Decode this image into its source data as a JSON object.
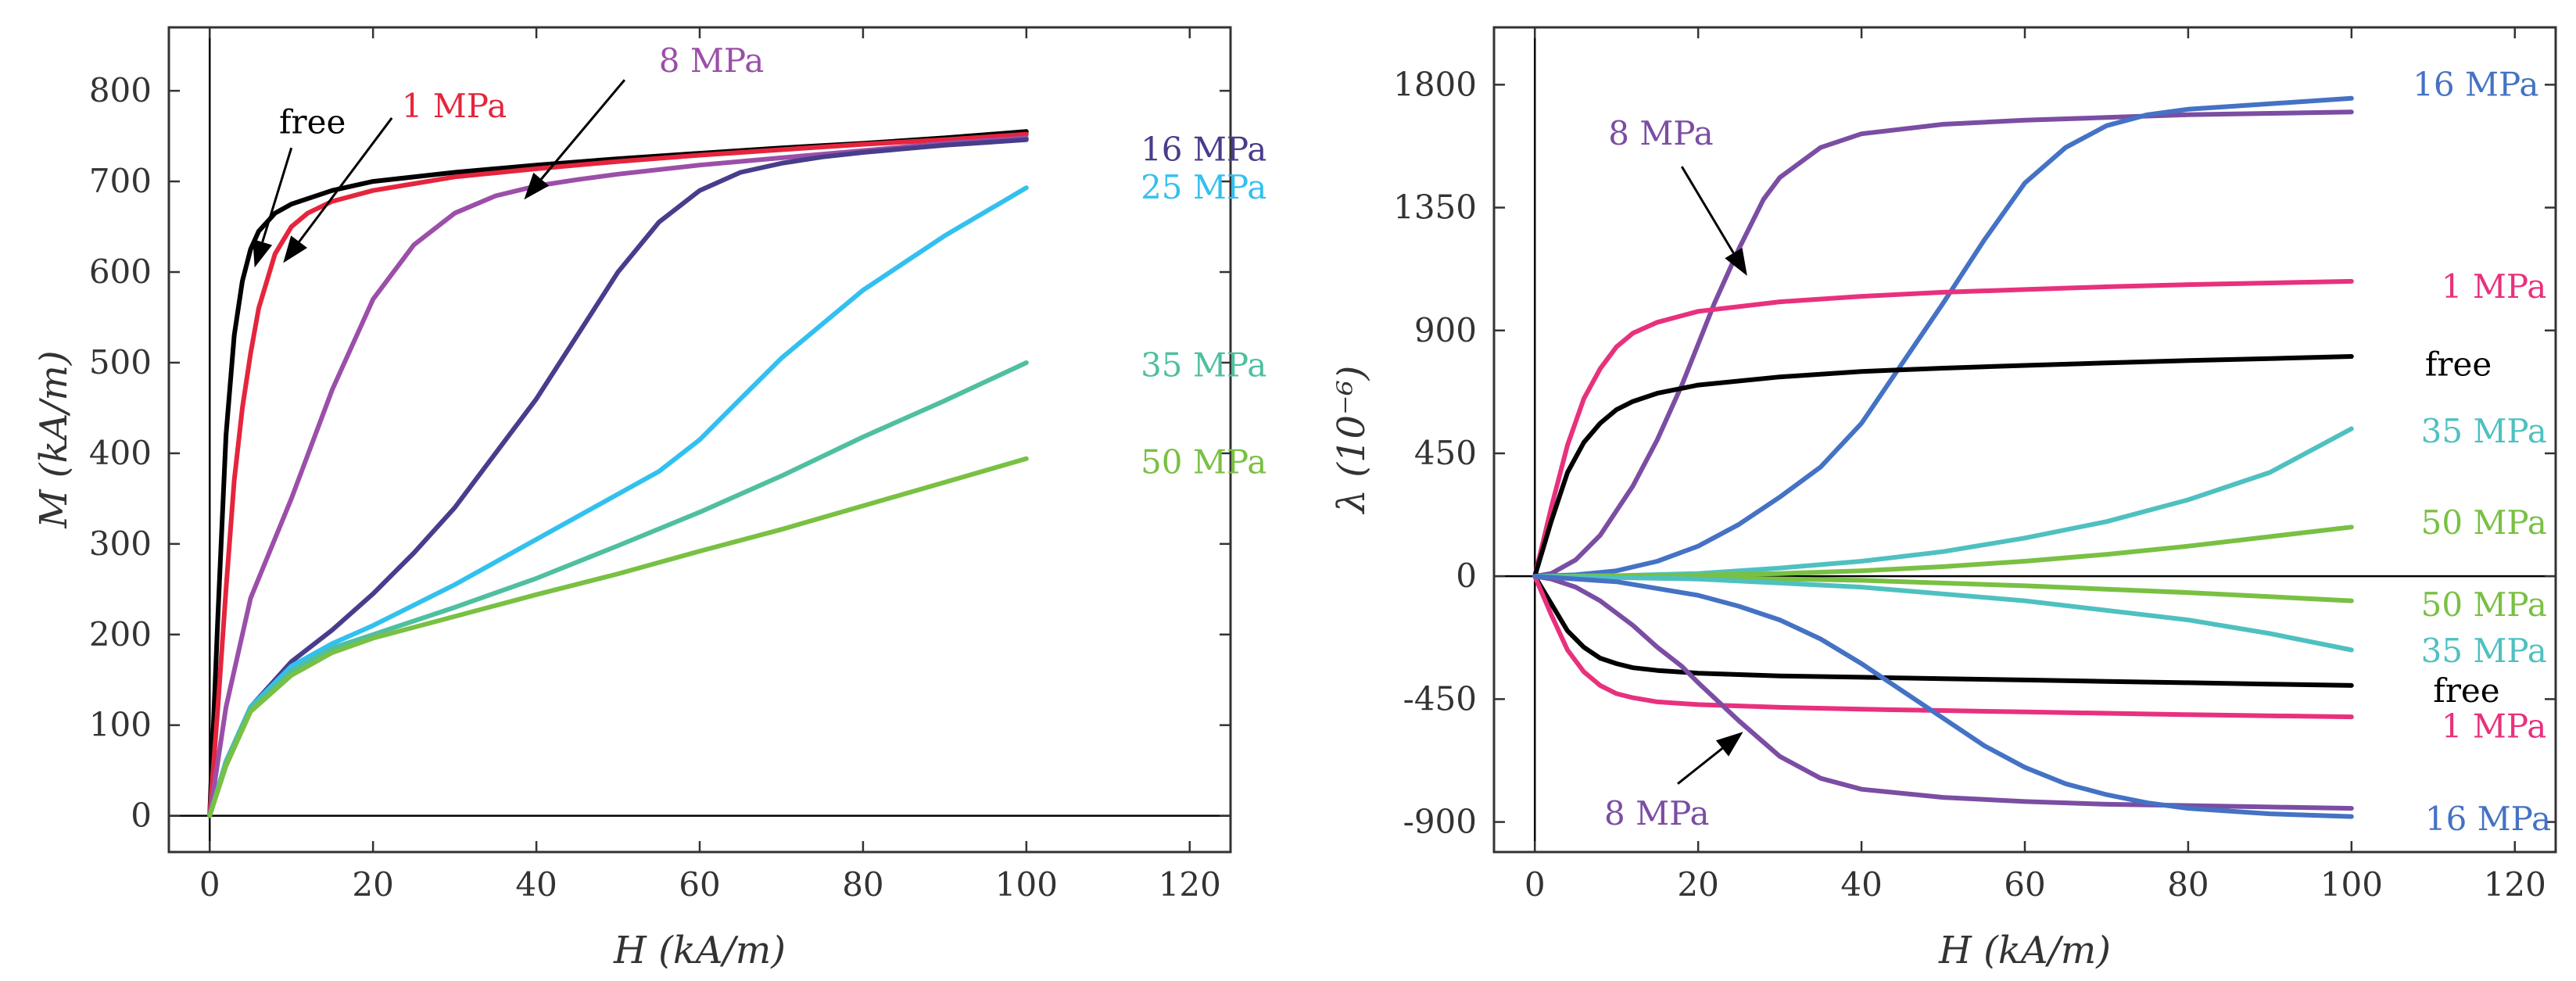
{
  "chart_data": [
    {
      "type": "line",
      "xlabel": "H (kA/m)",
      "ylabel": "M (kA/m)",
      "xlim": [
        -5,
        125
      ],
      "ylim": [
        -40,
        870
      ],
      "x_ticks": [
        0,
        20,
        40,
        60,
        80,
        100,
        120
      ],
      "y_ticks": [
        0,
        100,
        200,
        300,
        400,
        500,
        600,
        700,
        800
      ],
      "series": [
        {
          "name": "free",
          "color": "#000000",
          "x": [
            0,
            1,
            2,
            3,
            4,
            5,
            6,
            8,
            10,
            15,
            20,
            30,
            40,
            50,
            60,
            70,
            80,
            90,
            100
          ],
          "y": [
            0,
            220,
            420,
            530,
            590,
            625,
            645,
            665,
            675,
            690,
            700,
            710,
            718,
            725,
            731,
            737,
            742,
            748,
            755
          ]
        },
        {
          "name": "1 MPa",
          "color": "#e5253d",
          "x": [
            0,
            1,
            2,
            3,
            4,
            5,
            6,
            8,
            10,
            12,
            15,
            20,
            30,
            40,
            50,
            60,
            70,
            80,
            90,
            100
          ],
          "y": [
            0,
            120,
            250,
            370,
            450,
            510,
            560,
            620,
            650,
            665,
            678,
            690,
            705,
            714,
            722,
            729,
            735,
            741,
            746,
            752
          ]
        },
        {
          "name": "8 MPa",
          "color": "#9b4fa8",
          "x": [
            0,
            2,
            5,
            10,
            15,
            20,
            25,
            30,
            35,
            40,
            45,
            50,
            60,
            70,
            80,
            90,
            100
          ],
          "y": [
            0,
            120,
            240,
            350,
            470,
            570,
            630,
            665,
            684,
            695,
            702,
            708,
            718,
            726,
            734,
            742,
            748
          ]
        },
        {
          "name": "16 MPa",
          "color": "#483d8b",
          "x": [
            0,
            2,
            5,
            10,
            15,
            20,
            25,
            30,
            35,
            40,
            45,
            50,
            55,
            60,
            65,
            70,
            75,
            80,
            90,
            100
          ],
          "y": [
            0,
            60,
            120,
            170,
            205,
            245,
            290,
            340,
            400,
            460,
            530,
            600,
            655,
            690,
            710,
            720,
            727,
            732,
            740,
            746
          ]
        },
        {
          "name": "25 MPa",
          "color": "#32c0ef",
          "x": [
            0,
            2,
            5,
            10,
            15,
            20,
            30,
            40,
            50,
            55,
            60,
            65,
            70,
            80,
            90,
            100
          ],
          "y": [
            0,
            60,
            120,
            165,
            190,
            210,
            255,
            305,
            355,
            380,
            415,
            460,
            505,
            580,
            640,
            693
          ]
        },
        {
          "name": "35 MPa",
          "color": "#4fbfa0",
          "x": [
            0,
            2,
            5,
            10,
            15,
            20,
            30,
            40,
            50,
            60,
            70,
            80,
            90,
            100
          ],
          "y": [
            0,
            60,
            118,
            160,
            185,
            200,
            230,
            262,
            298,
            335,
            375,
            418,
            458,
            500
          ]
        },
        {
          "name": "50 MPa",
          "color": "#79c043",
          "x": [
            0,
            2,
            5,
            10,
            15,
            20,
            30,
            40,
            50,
            60,
            70,
            80,
            90,
            100
          ],
          "y": [
            0,
            55,
            115,
            155,
            180,
            196,
            220,
            244,
            267,
            292,
            316,
            342,
            368,
            394
          ]
        }
      ],
      "series_labels": [
        {
          "series": "free",
          "text": "free",
          "x": 8.5,
          "y": 765,
          "color": "#000000"
        },
        {
          "series": "1 MPa",
          "text": "1 MPa",
          "x": 23.5,
          "y": 783,
          "color": "#e5253d"
        },
        {
          "series": "8 MPa",
          "text": "8 MPa",
          "x": 55,
          "y": 833,
          "color": "#9b4fa8"
        },
        {
          "series": "16 MPa",
          "text": "16 MPa",
          "x": 114,
          "y": 735,
          "color": "#483d8b"
        },
        {
          "series": "25 MPa",
          "text": "25 MPa",
          "x": 114,
          "y": 693,
          "color": "#32c0ef"
        },
        {
          "series": "35 MPa",
          "text": "35 MPa",
          "x": 114,
          "y": 497,
          "color": "#4fbfa0"
        },
        {
          "series": "50 MPa",
          "text": "50 MPa",
          "x": 114,
          "y": 390,
          "color": "#79c043"
        }
      ],
      "arrows": [
        {
          "from": [
            10,
            737
          ],
          "to": [
            5.5,
            605
          ]
        },
        {
          "from": [
            22.3,
            770
          ],
          "to": [
            9,
            610
          ]
        },
        {
          "from": [
            50.8,
            812
          ],
          "to": [
            38.5,
            680
          ]
        }
      ]
    },
    {
      "type": "line",
      "xlabel": "H (kA/m)",
      "ylabel": "λ (10⁻⁶)",
      "xlim": [
        -5,
        125
      ],
      "ylim": [
        -1010,
        2010
      ],
      "x_ticks": [
        0,
        20,
        40,
        60,
        80,
        100,
        120
      ],
      "y_ticks": [
        -900,
        -450,
        0,
        450,
        900,
        1350,
        1800
      ],
      "series": [
        {
          "name": "8 MPa",
          "color": "#7b4da3",
          "x": [
            0,
            2,
            5,
            8,
            12,
            15,
            18,
            20,
            22,
            25,
            28,
            30,
            35,
            40,
            50,
            60,
            70,
            80,
            90,
            100
          ],
          "y": [
            0,
            10,
            60,
            150,
            330,
            500,
            700,
            850,
            1000,
            1200,
            1380,
            1460,
            1570,
            1620,
            1655,
            1670,
            1680,
            1690,
            1695,
            1700
          ]
        },
        {
          "name": "16 MPa",
          "color": "#4472c4",
          "x": [
            0,
            5,
            10,
            15,
            20,
            25,
            30,
            35,
            40,
            45,
            50,
            55,
            60,
            65,
            70,
            75,
            80,
            90,
            100
          ],
          "y": [
            0,
            5,
            20,
            55,
            110,
            190,
            290,
            400,
            560,
            780,
            1000,
            1230,
            1440,
            1570,
            1650,
            1690,
            1710,
            1730,
            1750
          ]
        },
        {
          "name": "1 MPa",
          "color": "#e8317d",
          "x": [
            0,
            2,
            4,
            6,
            8,
            10,
            12,
            15,
            20,
            30,
            40,
            50,
            60,
            70,
            80,
            90,
            100
          ],
          "y": [
            0,
            250,
            480,
            650,
            760,
            840,
            890,
            930,
            970,
            1005,
            1025,
            1040,
            1050,
            1060,
            1068,
            1074,
            1080
          ]
        },
        {
          "name": "free",
          "color": "#000000",
          "x": [
            0,
            2,
            4,
            6,
            8,
            10,
            12,
            15,
            20,
            30,
            40,
            50,
            60,
            70,
            80,
            90,
            100
          ],
          "y": [
            0,
            200,
            380,
            490,
            560,
            610,
            640,
            670,
            700,
            730,
            750,
            762,
            772,
            781,
            790,
            797,
            805
          ]
        },
        {
          "name": "35 MPa",
          "color": "#4fc0c0",
          "x": [
            0,
            10,
            20,
            30,
            40,
            50,
            60,
            70,
            80,
            90,
            100
          ],
          "y": [
            0,
            2,
            10,
            30,
            55,
            90,
            140,
            200,
            280,
            380,
            540
          ]
        },
        {
          "name": "50 MPa",
          "color": "#79c043",
          "x": [
            0,
            10,
            20,
            30,
            40,
            50,
            60,
            70,
            80,
            90,
            100
          ],
          "y": [
            0,
            1,
            4,
            10,
            20,
            35,
            55,
            80,
            110,
            145,
            180
          ]
        },
        {
          "name": "50 MPa (neg)",
          "color": "#79c043",
          "x": [
            0,
            20,
            40,
            60,
            80,
            100
          ],
          "y": [
            0,
            -5,
            -15,
            -35,
            -60,
            -90
          ]
        },
        {
          "name": "35 MPa (neg)",
          "color": "#4fc0c0",
          "x": [
            0,
            20,
            40,
            60,
            80,
            90,
            100
          ],
          "y": [
            0,
            -10,
            -40,
            -90,
            -160,
            -210,
            -270
          ]
        },
        {
          "name": "free (neg)",
          "color": "#000000",
          "x": [
            0,
            2,
            4,
            6,
            8,
            10,
            12,
            15,
            20,
            30,
            40,
            50,
            60,
            70,
            80,
            90,
            100
          ],
          "y": [
            0,
            -100,
            -200,
            -260,
            -300,
            -320,
            -335,
            -345,
            -355,
            -365,
            -370,
            -375,
            -380,
            -385,
            -390,
            -395,
            -400
          ]
        },
        {
          "name": "1 MPa (neg)",
          "color": "#e8317d",
          "x": [
            0,
            2,
            4,
            6,
            8,
            10,
            12,
            15,
            20,
            30,
            40,
            50,
            60,
            70,
            80,
            90,
            100
          ],
          "y": [
            0,
            -140,
            -270,
            -350,
            -400,
            -430,
            -445,
            -460,
            -470,
            -480,
            -487,
            -492,
            -497,
            -502,
            -507,
            -511,
            -515
          ]
        },
        {
          "name": "8 MPa (neg)",
          "color": "#7b4da3",
          "x": [
            0,
            2,
            5,
            8,
            12,
            15,
            18,
            20,
            25,
            30,
            35,
            40,
            50,
            60,
            70,
            80,
            90,
            100
          ],
          "y": [
            0,
            -10,
            -40,
            -90,
            -180,
            -260,
            -330,
            -390,
            -530,
            -660,
            -740,
            -780,
            -810,
            -825,
            -835,
            -840,
            -845,
            -850
          ]
        },
        {
          "name": "16 MPa (neg)",
          "color": "#4472c4",
          "x": [
            0,
            10,
            20,
            25,
            30,
            35,
            40,
            45,
            50,
            55,
            60,
            65,
            70,
            75,
            80,
            90,
            100
          ],
          "y": [
            0,
            -20,
            -70,
            -110,
            -160,
            -230,
            -320,
            -420,
            -520,
            -620,
            -700,
            -760,
            -800,
            -830,
            -850,
            -870,
            -880
          ]
        }
      ],
      "series_labels": [
        {
          "series": "16 MPa",
          "text": "16 MPa",
          "x": 107.5,
          "y": 1800,
          "color": "#4472c4"
        },
        {
          "series": "8 MPa",
          "text": "8 MPa",
          "x": 9,
          "y": 1620,
          "color": "#7b4da3"
        },
        {
          "series": "1 MPa",
          "text": "1 MPa",
          "x": 111,
          "y": 1060,
          "color": "#e8317d"
        },
        {
          "series": "free",
          "text": "free",
          "x": 109,
          "y": 775,
          "color": "#000000"
        },
        {
          "series": "35 MPa",
          "text": "35 MPa",
          "x": 108.5,
          "y": 530,
          "color": "#4fc0c0"
        },
        {
          "series": "50 MPa",
          "text": "50 MPa",
          "x": 108.5,
          "y": 195,
          "color": "#79c043"
        },
        {
          "series": "50 MPa (neg)",
          "text": "50 MPa",
          "x": 108.5,
          "y": -105,
          "color": "#79c043"
        },
        {
          "series": "35 MPa (neg)",
          "text": "35 MPa",
          "x": 108.5,
          "y": -275,
          "color": "#4fc0c0"
        },
        {
          "series": "free (neg)",
          "text": "free",
          "x": 110,
          "y": -420,
          "color": "#000000"
        },
        {
          "series": "1 MPa (neg)",
          "text": "1 MPa",
          "x": 111,
          "y": -550,
          "color": "#e8317d"
        },
        {
          "series": "8 MPa (neg)",
          "text": "8 MPa",
          "x": 8.5,
          "y": -870,
          "color": "#7b4da3"
        },
        {
          "series": "16 MPa (neg)",
          "text": "16 MPa",
          "x": 109,
          "y": -890,
          "color": "#4472c4"
        }
      ],
      "arrows": [
        {
          "from": [
            18,
            1500
          ],
          "to": [
            26,
            1100
          ]
        },
        {
          "from": [
            17.5,
            -760
          ],
          "to": [
            25.5,
            -570
          ]
        }
      ]
    }
  ]
}
